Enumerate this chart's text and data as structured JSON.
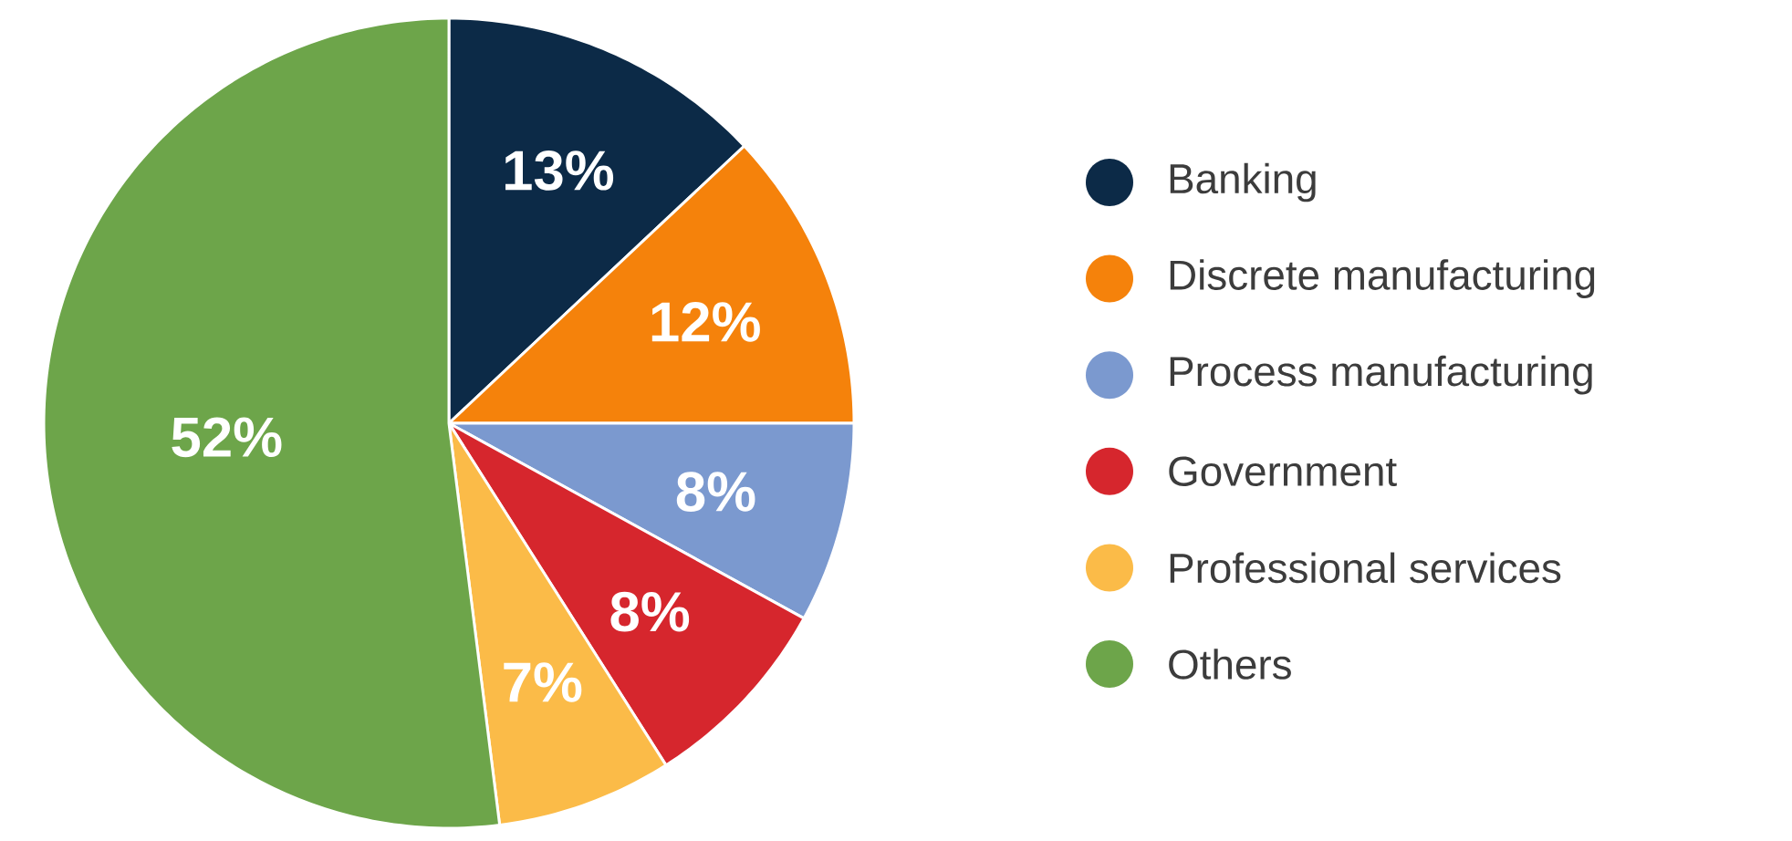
{
  "chart_data": {
    "type": "pie",
    "categories": [
      "Banking",
      "Discrete manufacturing",
      "Process manufacturing",
      "Government",
      "Professional services",
      "Others"
    ],
    "values": [
      13,
      12,
      8,
      8,
      7,
      52
    ],
    "colors": [
      "#0c2a47",
      "#f5820b",
      "#7b99cf",
      "#d6262d",
      "#fbbb48",
      "#6da54a"
    ],
    "value_labels": [
      "13%",
      "12%",
      "8%",
      "8%",
      "7%",
      "52%"
    ],
    "legend": "right"
  }
}
